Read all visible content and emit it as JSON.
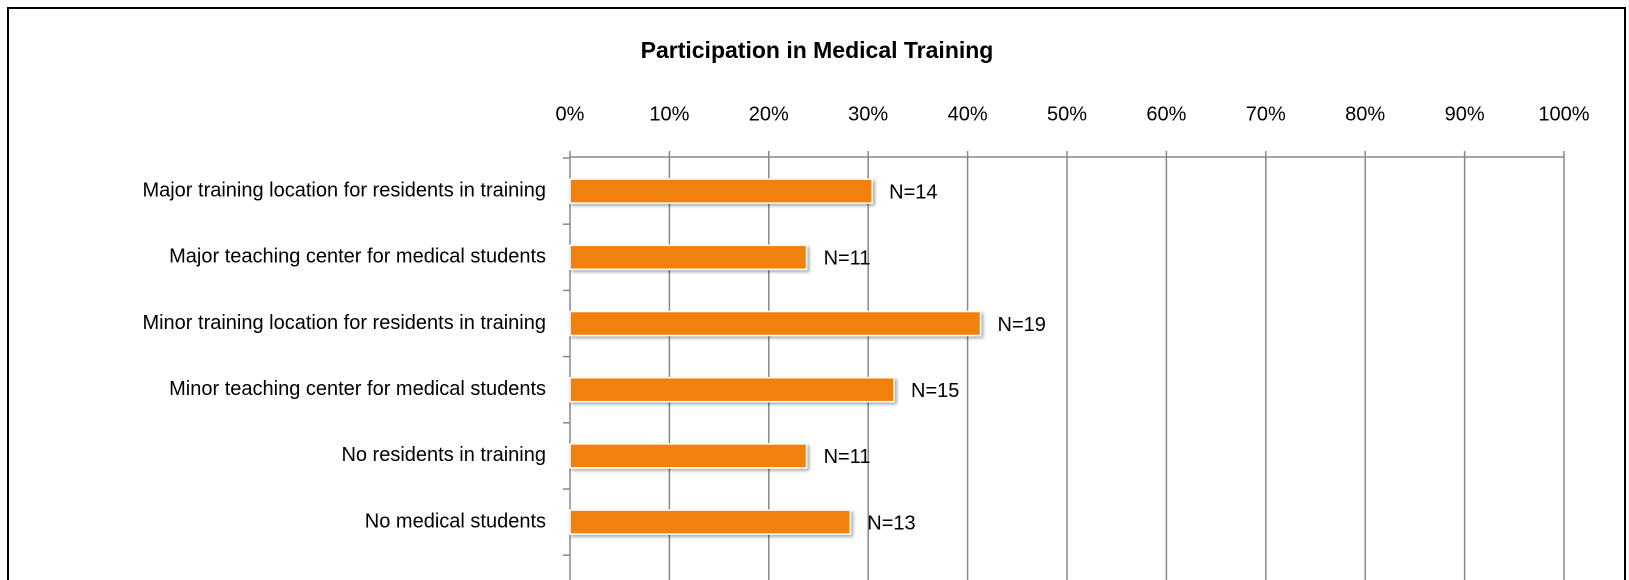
{
  "chart_data": {
    "type": "hbar",
    "title": "Participation in Medical Training",
    "categories": [
      "Major training location for residents in training",
      "Major teaching center for medical students",
      "Minor training location for residents in training",
      "Minor teaching center for medical students",
      "No residents in training",
      "No medical students"
    ],
    "values": [
      30.4,
      23.8,
      41.3,
      32.6,
      23.8,
      28.2
    ],
    "n_labels": [
      "N=14",
      "N=11",
      "N=19",
      "N=15",
      "N=11",
      "N=13"
    ],
    "color": "#f0810f",
    "xlim": [
      0,
      100
    ],
    "xticks": [
      {
        "value": 0,
        "label": "0%"
      },
      {
        "value": 10,
        "label": "10%"
      },
      {
        "value": 20,
        "label": "20%"
      },
      {
        "value": 30,
        "label": "30%"
      },
      {
        "value": 40,
        "label": "40%"
      },
      {
        "value": 50,
        "label": "50%"
      },
      {
        "value": 60,
        "label": "60%"
      },
      {
        "value": 70,
        "label": "70%"
      },
      {
        "value": 80,
        "label": "80%"
      },
      {
        "value": 90,
        "label": "90%"
      },
      {
        "value": 100,
        "label": "100%"
      }
    ],
    "grid": true
  }
}
